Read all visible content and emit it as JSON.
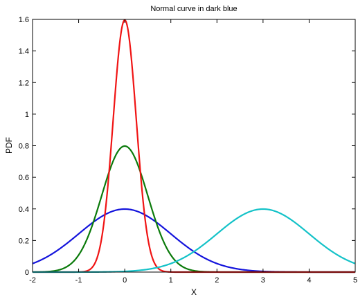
{
  "chart_data": {
    "type": "line",
    "title": "Normal curve in dark blue",
    "xlabel": "X",
    "ylabel": "PDF",
    "xlim": [
      -2,
      5
    ],
    "ylim": [
      0,
      1.6
    ],
    "xticks": [
      "-2",
      "-1",
      "0",
      "1",
      "2",
      "3",
      "4",
      "5"
    ],
    "yticks": [
      "0",
      "0.2",
      "0.4",
      "0.6",
      "0.8",
      "1",
      "1.2",
      "1.4",
      "1.6"
    ],
    "grid": false,
    "legend": "none",
    "series": [
      {
        "mean": 0,
        "sd": 1,
        "color": "#1414dc",
        "peak": 0.4
      },
      {
        "mean": 0,
        "sd": 0.5,
        "color": "#0a7a0a",
        "peak": 0.8
      },
      {
        "mean": 0,
        "sd": 0.25,
        "color": "#f01414",
        "peak": 1.6
      },
      {
        "mean": 3,
        "sd": 1,
        "color": "#14c2c8",
        "peak": 0.4
      }
    ]
  }
}
